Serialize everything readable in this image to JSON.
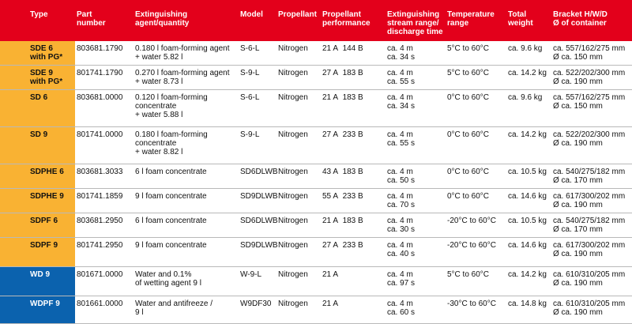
{
  "headers": [
    "Type",
    "Part number",
    "Extinguishing agent/quantity",
    "Model",
    "Propellant",
    "Propellant performance",
    "Extinguishing stream range/ discharge time",
    "Temperature range",
    "Total weight",
    "Bracket H/W/D Ø of container"
  ],
  "header_lines": [
    [
      "Type"
    ],
    [
      "Part",
      "number"
    ],
    [
      "Extinguishing",
      "agent/quantity"
    ],
    [
      "Model"
    ],
    [
      "Propellant"
    ],
    [
      "Propellant",
      "performance"
    ],
    [
      "Extinguishing",
      "stream range/",
      "discharge time"
    ],
    [
      "Temperature",
      "range"
    ],
    [
      "Total",
      "weight"
    ],
    [
      "Bracket H/W/D",
      "Ø of container"
    ]
  ],
  "colors": {
    "header_bg": "#e3001b",
    "type_orange": "#f9b233",
    "type_blue": "#0b62ae"
  },
  "rows": [
    {
      "type": [
        "SDE 6",
        "with PG*"
      ],
      "group": "orange",
      "part": "803681.1790",
      "agent": [
        "0.180 l foam-forming agent",
        "+ water 5.82 l"
      ],
      "model": "S-6-L",
      "propellant": "Nitrogen",
      "perf_a": "21 A",
      "perf_b": "144 B",
      "range": [
        "ca. 4 m",
        "ca. 34 s"
      ],
      "temp": "5°C to 60°C",
      "weight": "ca. 9.6 kg",
      "bracket": [
        "ca. 557/162/275 mm",
        "Ø ca. 150 mm"
      ]
    },
    {
      "type": [
        "SDE 9",
        "with PG*"
      ],
      "group": "orange",
      "part": "801741.1790",
      "agent": [
        "0.270 l foam-forming agent",
        "+ water 8.73 l"
      ],
      "model": "S-9-L",
      "propellant": "Nitrogen",
      "perf_a": "27 A",
      "perf_b": "183 B",
      "range": [
        "ca. 4 m",
        "ca. 55 s"
      ],
      "temp": "5°C to 60°C",
      "weight": "ca. 14.2 kg",
      "bracket": [
        "ca. 522/202/300 mm",
        "Ø ca. 190 mm"
      ]
    },
    {
      "type": [
        "SD 6"
      ],
      "group": "orange",
      "part": "803681.0000",
      "agent": [
        "0.120 l foam-forming",
        "concentrate",
        "+ water 5.88 l"
      ],
      "model": "S-6-L",
      "propellant": "Nitrogen",
      "perf_a": "21 A",
      "perf_b": "183 B",
      "range": [
        "ca. 4 m",
        "ca. 34 s"
      ],
      "temp": "0°C to 60°C",
      "weight": "ca. 9.6 kg",
      "bracket": [
        "ca. 557/162/275 mm",
        "Ø ca. 150 mm"
      ]
    },
    {
      "type": [
        "SD 9"
      ],
      "group": "orange",
      "part": "801741.0000",
      "agent": [
        "0.180 l foam-forming",
        "concentrate",
        "+ water 8.82 l"
      ],
      "model": "S-9-L",
      "propellant": "Nitrogen",
      "perf_a": "27 A",
      "perf_b": "233 B",
      "range": [
        "ca. 4 m",
        "ca. 55 s"
      ],
      "temp": "0°C to 60°C",
      "weight": "ca. 14.2 kg",
      "bracket": [
        "ca. 522/202/300 mm",
        "Ø ca. 190 mm"
      ]
    },
    {
      "type": [
        "SDPHE 6"
      ],
      "group": "orange",
      "part": "803681.3033",
      "agent": [
        "6 l foam concentrate"
      ],
      "model": "SD6DLWB",
      "propellant": "Nitrogen",
      "perf_a": "43 A",
      "perf_b": "183 B",
      "range": [
        "ca. 4 m",
        "ca. 50 s"
      ],
      "temp": "0°C to 60°C",
      "weight": "ca. 10.5 kg",
      "bracket": [
        "ca. 540/275/182 mm",
        "Ø ca. 170 mm"
      ]
    },
    {
      "type": [
        "SDPHE 9"
      ],
      "group": "orange",
      "part": "801741.1859",
      "agent": [
        "9 l foam concentrate"
      ],
      "model": "SD9DLWB",
      "propellant": "Nitrogen",
      "perf_a": "55 A",
      "perf_b": "233 B",
      "range": [
        "ca. 4 m",
        "ca. 70 s"
      ],
      "temp": "0°C to 60°C",
      "weight": "ca. 14.6 kg",
      "bracket": [
        "ca. 617/300/202 mm",
        "Ø ca. 190 mm"
      ]
    },
    {
      "type": [
        "SDPF 6"
      ],
      "group": "orange",
      "part": "803681.2950",
      "agent": [
        "6 l foam concentrate"
      ],
      "model": "SD6DLWB",
      "propellant": "Nitrogen",
      "perf_a": "21 A",
      "perf_b": "183 B",
      "range": [
        "ca. 4 m",
        "ca. 30 s"
      ],
      "temp": "-20°C to 60°C",
      "weight": "ca. 10.5 kg",
      "bracket": [
        "ca. 540/275/182 mm",
        "Ø ca. 170 mm"
      ]
    },
    {
      "type": [
        "SDPF 9"
      ],
      "group": "orange",
      "part": "801741.2950",
      "agent": [
        "9 l foam concentrate"
      ],
      "model": "SD9DLWB",
      "propellant": "Nitrogen",
      "perf_a": "27 A",
      "perf_b": "233 B",
      "range": [
        "ca. 4 m",
        "ca. 40 s"
      ],
      "temp": "-20°C to 60°C",
      "weight": "ca. 14.6 kg",
      "bracket": [
        "ca. 617/300/202 mm",
        "Ø ca. 190 mm"
      ]
    },
    {
      "type": [
        "WD 9"
      ],
      "group": "blue",
      "part": "801671.0000",
      "agent": [
        "Water and 0.1%",
        "of wetting agent 9 l"
      ],
      "model": "W-9-L",
      "propellant": "Nitrogen",
      "perf_a": "21 A",
      "perf_b": "",
      "range": [
        "ca. 4 m",
        "ca. 97 s"
      ],
      "temp": "5°C to 60°C",
      "weight": "ca. 14.2 kg",
      "bracket": [
        "ca. 610/310/205 mm",
        "Ø ca. 190 mm"
      ]
    },
    {
      "type": [
        "WDPF 9"
      ],
      "group": "blue",
      "part": "801661.0000",
      "agent": [
        "Water and antifreeze /",
        "9 l"
      ],
      "model": "W9DF30",
      "propellant": "Nitrogen",
      "perf_a": "21 A",
      "perf_b": "",
      "range": [
        "ca. 4 m",
        "ca. 60 s"
      ],
      "temp": "-30°C to 60°C",
      "weight": "ca. 14.8 kg",
      "bracket": [
        "ca. 610/310/205 mm",
        "Ø ca. 190 mm"
      ]
    }
  ]
}
